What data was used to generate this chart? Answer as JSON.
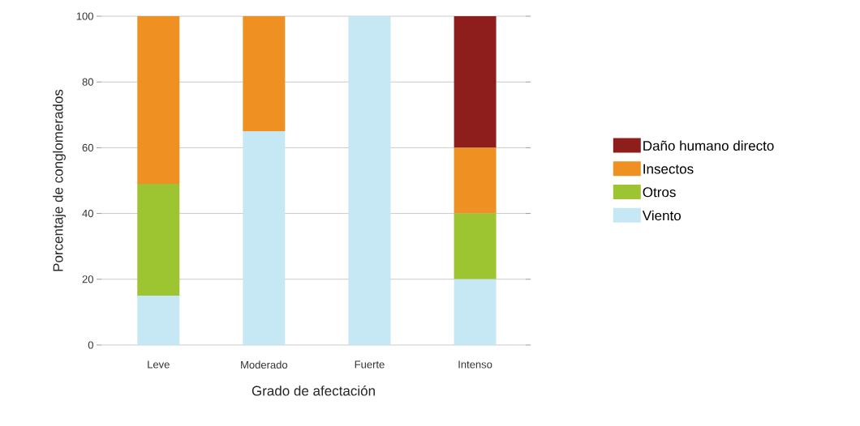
{
  "chart_data": {
    "type": "bar",
    "stacked": true,
    "xlabel": "Grado de afectación",
    "ylabel": "Porcentaje de conglomerados",
    "categories": [
      "Leve",
      "Moderado",
      "Fuerte",
      "Intenso"
    ],
    "series": [
      {
        "name": "Viento",
        "color": "#c6e8f4",
        "values": [
          15,
          65,
          100,
          20
        ]
      },
      {
        "name": "Otros",
        "color": "#9dc431",
        "values": [
          34,
          null,
          null,
          20
        ]
      },
      {
        "name": "Insectos",
        "color": "#ef9022",
        "values": [
          51,
          35,
          null,
          20
        ]
      },
      {
        "name": "Daño humano directo",
        "color": "#8e1e1c",
        "values": [
          null,
          null,
          null,
          40
        ]
      }
    ],
    "ylim": [
      0,
      100
    ],
    "yticks": [
      0,
      20,
      40,
      60,
      80,
      100
    ],
    "grid": "y",
    "legend": "right"
  }
}
